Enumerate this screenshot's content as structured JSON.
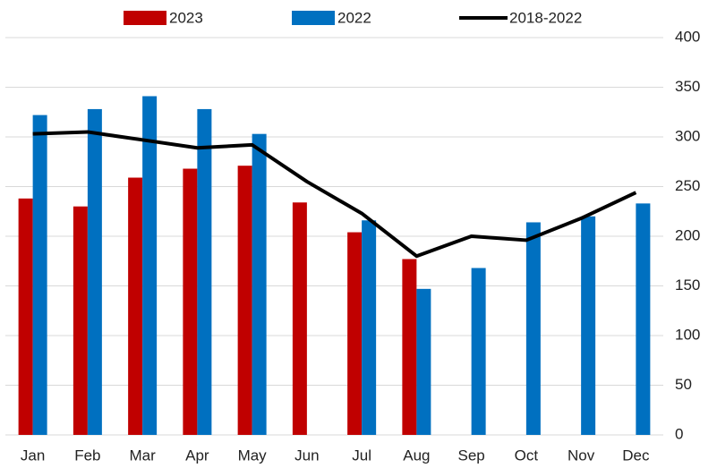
{
  "chart_data": {
    "type": "bar-line",
    "categories": [
      "Jan",
      "Feb",
      "Mar",
      "Apr",
      "May",
      "Jun",
      "Jul",
      "Aug",
      "Sep",
      "Oct",
      "Nov",
      "Dec"
    ],
    "series": [
      {
        "name": "2023",
        "type": "bar",
        "color": "#c00000",
        "values": [
          238,
          230,
          259,
          268,
          271,
          234,
          204,
          177,
          null,
          null,
          null,
          null
        ]
      },
      {
        "name": "2022",
        "type": "bar",
        "color": "#0070c0",
        "values": [
          322,
          328,
          341,
          328,
          303,
          null,
          216,
          147,
          168,
          214,
          220,
          233
        ]
      },
      {
        "name": "2018-2022",
        "type": "line",
        "color": "#000000",
        "values": [
          303,
          305,
          297,
          289,
          292,
          255,
          223,
          180,
          200,
          196,
          218,
          244
        ]
      }
    ],
    "ylim": [
      0,
      400
    ],
    "yticks": [
      0,
      50,
      100,
      150,
      200,
      250,
      300,
      350,
      400
    ],
    "grid": true
  }
}
